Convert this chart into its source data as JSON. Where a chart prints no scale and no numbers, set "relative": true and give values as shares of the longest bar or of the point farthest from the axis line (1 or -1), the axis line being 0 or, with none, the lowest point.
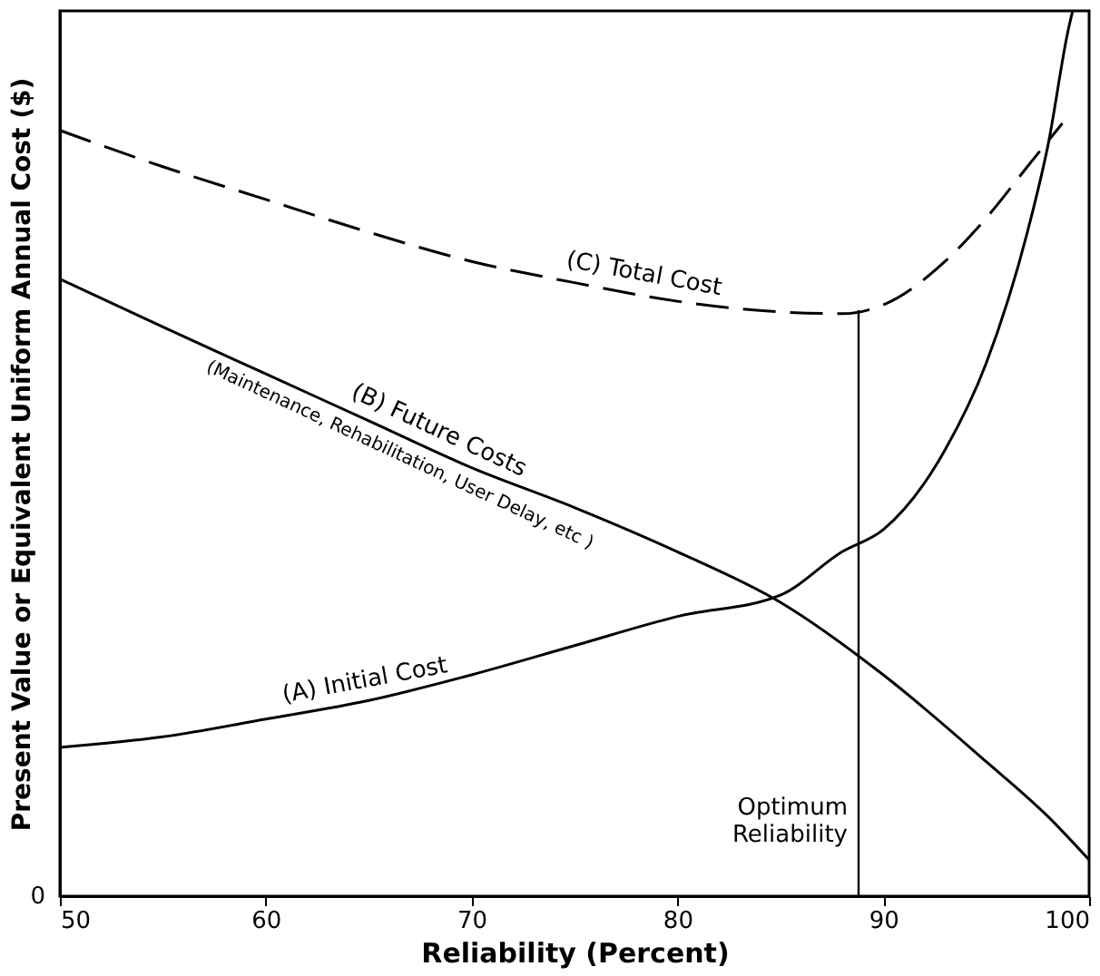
{
  "chart_data": {
    "type": "line",
    "relative": true,
    "xlabel": "Reliability (Percent)",
    "ylabel": "Present Value or Equivalent Uniform Annual Cost ($)",
    "xlim": [
      50,
      100
    ],
    "xticks": [
      50,
      60,
      70,
      80,
      90,
      100
    ],
    "grid": false,
    "series": [
      {
        "color": "#000000",
        "line_style": "solid",
        "x": [
          50,
          55,
          60,
          65,
          70,
          75,
          80,
          85,
          88,
          90,
          93,
          95,
          97,
          98,
          99,
          99.2
        ],
        "values": [
          0.168,
          0.18,
          0.2,
          0.221,
          0.25,
          0.283,
          0.316,
          0.34,
          0.389,
          0.414,
          0.504,
          0.602,
          0.75,
          0.848,
          0.98,
          1.0
        ]
      },
      {
        "color": "#000000",
        "line_style": "solid",
        "x": [
          50,
          55,
          60,
          65,
          70,
          75,
          80,
          85,
          90,
          95,
          98,
          100
        ],
        "values": [
          0.697,
          0.643,
          0.59,
          0.537,
          0.484,
          0.439,
          0.389,
          0.332,
          0.25,
          0.152,
          0.09,
          0.041
        ]
      },
      {
        "color": "#000000",
        "line_style": "dashed",
        "x": [
          50,
          55,
          60,
          65,
          70,
          75,
          80,
          85,
          88,
          90,
          93,
          95,
          97,
          98.7
        ],
        "values": [
          0.865,
          0.824,
          0.787,
          0.75,
          0.717,
          0.693,
          0.672,
          0.66,
          0.658,
          0.668,
          0.717,
          0.766,
          0.824,
          0.873
        ]
      }
    ],
    "ref_lines": [
      {
        "axis": "x",
        "value": 88.8,
        "label": "Optimum Reliability"
      }
    ],
    "annotations": [
      {
        "text": "(A) Initial Cost",
        "x": 65,
        "y": 0.221
      },
      {
        "text": "(B) Future Costs",
        "x": 68,
        "y": 0.505
      },
      {
        "text": "(Maintenance, Rehabilitation, User Delay, etc )",
        "x": 66.9,
        "y": 0.517
      },
      {
        "text": "(C) Total Cost",
        "x": 78.2,
        "y": 0.68
      },
      "0"
    ]
  }
}
